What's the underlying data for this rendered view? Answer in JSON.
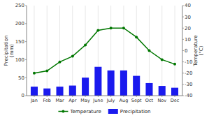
{
  "chart_data": {
    "type": "bar",
    "categories": [
      "Jan",
      "Feb",
      "Mar",
      "Apr",
      "May",
      "June",
      "July",
      "Aug",
      "Sept",
      "Oct",
      "Nov",
      "Dec"
    ],
    "series": [
      {
        "name": "Temperature",
        "type": "line",
        "axis": "y2",
        "color": "#007700",
        "marker": "circle",
        "values": [
          -20,
          -18,
          -10,
          -5,
          5,
          18,
          20,
          20,
          12,
          0,
          -8,
          -12
        ]
      },
      {
        "name": "Precipitation",
        "type": "bar",
        "color": "#1a1aee",
        "values": [
          25,
          20,
          25,
          28,
          50,
          80,
          70,
          70,
          55,
          35,
          27,
          22
        ]
      }
    ],
    "y_label": "Precipitation\n(mm)",
    "y2_label": "Temperature\n(°C)",
    "ylim": [
      0,
      250
    ],
    "yticks": [
      0,
      50,
      100,
      150,
      200,
      250
    ],
    "y2lim": [
      -40,
      40
    ],
    "y2ticks": [
      -40,
      -30,
      -20,
      -10,
      0,
      10,
      20,
      30,
      40
    ],
    "grid": "x",
    "legend": "bottom"
  }
}
